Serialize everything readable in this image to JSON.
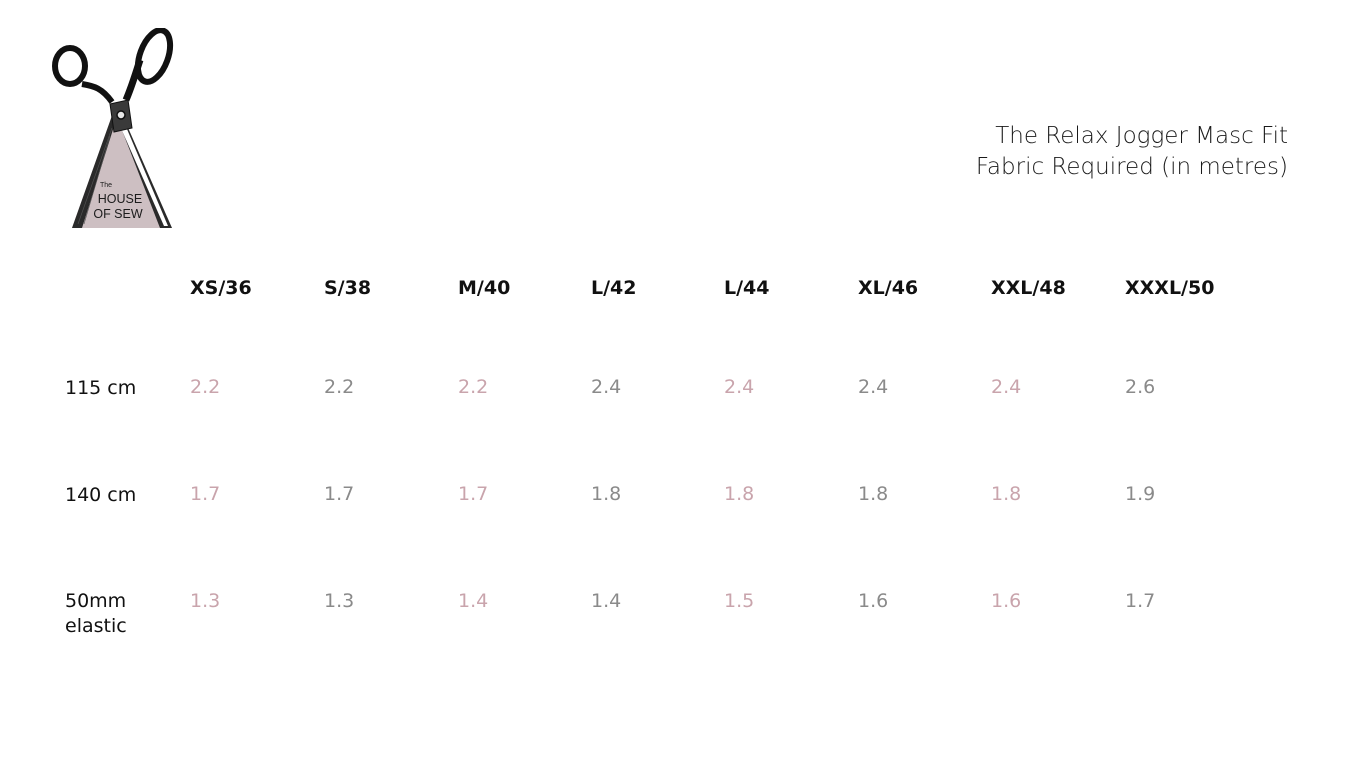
{
  "logo": {
    "small": "The",
    "line1": "HOUSE",
    "line2": "OF SEW"
  },
  "title": {
    "line1": "The Relax Jogger Masc Fit",
    "line2": "Fabric Required (in metres)"
  },
  "colors": {
    "accent_pink": "#c9a4ac",
    "value_grey": "#8a8a8a",
    "logo_fill": "#cdbfc2"
  },
  "sizes": [
    "XS/36",
    "S/38",
    "M/40",
    "L/42",
    "L/44",
    "XL/46",
    "XXL/48",
    "XXXL/50"
  ],
  "rows": [
    {
      "label": "115 cm",
      "values": [
        "2.2",
        "2.2",
        "2.2",
        "2.4",
        "2.4",
        "2.4",
        "2.4",
        "2.6"
      ]
    },
    {
      "label": "140 cm",
      "values": [
        "1.7",
        "1.7",
        "1.7",
        "1.8",
        "1.8",
        "1.8",
        "1.8",
        "1.9"
      ]
    },
    {
      "label_line1": "50mm",
      "label_line2": "elastic",
      "values": [
        "1.3",
        "1.3",
        "1.4",
        "1.4",
        "1.5",
        "1.6",
        "1.6",
        "1.7"
      ]
    }
  ]
}
